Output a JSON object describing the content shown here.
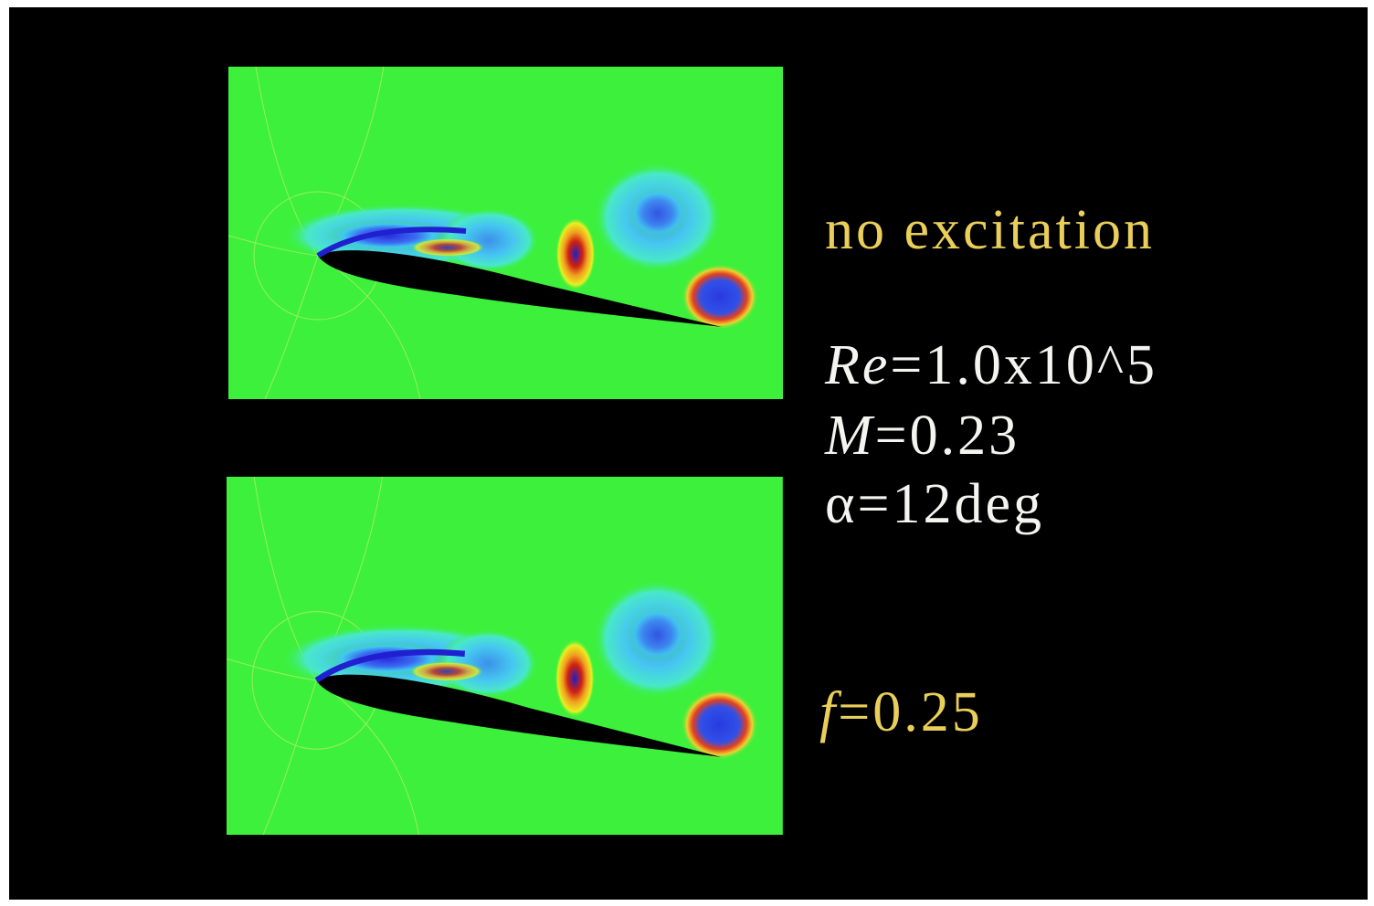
{
  "annotations": {
    "condition": "no excitation",
    "parameters": [
      {
        "symbol": "Re",
        "value": "=1.0x10^5"
      },
      {
        "symbol": "M",
        "value": "=0.23"
      },
      {
        "symbol": "α",
        "value": "=12deg"
      }
    ],
    "forcing": {
      "symbol": "f",
      "value": "=0.25"
    }
  }
}
